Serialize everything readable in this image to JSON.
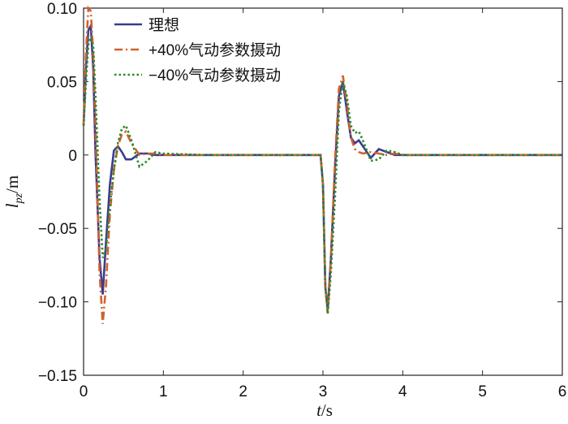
{
  "chart_data": {
    "type": "line",
    "xlabel": {
      "main": "t",
      "unit": "/s"
    },
    "ylabel": {
      "main": "l",
      "sub": "pz",
      "unit": "/m"
    },
    "x": [
      0,
      0.03,
      0.06,
      0.09,
      0.12,
      0.15,
      0.2,
      0.24,
      0.28,
      0.33,
      0.38,
      0.43,
      0.48,
      0.53,
      0.6,
      0.7,
      0.8,
      0.9,
      1.0,
      1.5,
      2.0,
      2.5,
      2.97,
      3.0,
      3.03,
      3.06,
      3.1,
      3.15,
      3.2,
      3.25,
      3.3,
      3.35,
      3.4,
      3.45,
      3.5,
      3.6,
      3.7,
      3.8,
      3.9,
      4.0,
      4.5,
      5,
      5.5,
      6
    ],
    "series": [
      {
        "name": "理想",
        "color": "#3b3b8f",
        "dash": "solid",
        "values": [
          0.02,
          0.06,
          0.085,
          0.088,
          0.06,
          0.0,
          -0.07,
          -0.095,
          -0.06,
          -0.02,
          0.003,
          0.006,
          0.002,
          -0.003,
          -0.003,
          0.001,
          0.001,
          0,
          0,
          0,
          0,
          0,
          0,
          -0.02,
          -0.09,
          -0.105,
          -0.07,
          -0.01,
          0.04,
          0.05,
          0.03,
          0.012,
          0.008,
          0.01,
          0.006,
          -0.002,
          0.004,
          0.002,
          0,
          0,
          0,
          0,
          0,
          0
        ]
      },
      {
        "name": "+40%气动参数摄动",
        "color": "#d2622c",
        "dash": "dashdot",
        "values": [
          0.02,
          0.07,
          0.1,
          0.098,
          0.07,
          0.02,
          -0.08,
          -0.115,
          -0.09,
          -0.04,
          -0.01,
          0.006,
          0.014,
          0.016,
          0.008,
          0.0,
          0.001,
          0.001,
          0,
          0,
          0,
          0,
          0,
          -0.02,
          -0.09,
          -0.108,
          -0.07,
          -0.005,
          0.045,
          0.054,
          0.035,
          0.012,
          0.004,
          0.002,
          0.001,
          0.002,
          0.001,
          0.0,
          0.001,
          0,
          0,
          0,
          0,
          0
        ]
      },
      {
        "name": "−40%气动参数摄动",
        "color": "#2b8a2b",
        "dash": "dotted",
        "values": [
          0.02,
          0.05,
          0.075,
          0.08,
          0.075,
          0.04,
          -0.03,
          -0.07,
          -0.065,
          -0.035,
          -0.01,
          0.008,
          0.018,
          0.02,
          0.01,
          -0.008,
          -0.004,
          0.002,
          0.001,
          0,
          0,
          0,
          0,
          -0.02,
          -0.09,
          -0.108,
          -0.08,
          -0.03,
          0.03,
          0.05,
          0.04,
          0.02,
          0.015,
          0.016,
          0.01,
          -0.004,
          -0.003,
          0.003,
          0.002,
          0,
          0,
          0,
          0,
          0
        ]
      }
    ],
    "xlim": [
      0,
      6
    ],
    "xticks": [
      0,
      1,
      2,
      3,
      4,
      5,
      6
    ],
    "ylim": [
      -0.15,
      0.1
    ],
    "yticks": [
      {
        "value": -0.15,
        "label": "−0.15"
      },
      {
        "value": -0.1,
        "label": "−0.10"
      },
      {
        "value": -0.05,
        "label": "−0.05"
      },
      0,
      0.05,
      {
        "value": 0.1,
        "label": "0.10"
      }
    ],
    "legend": "upper-left"
  }
}
